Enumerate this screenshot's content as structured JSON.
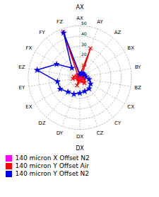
{
  "chart_data": {
    "type": "radar",
    "categories": [
      "AX",
      "AY",
      "AZ",
      "BX",
      "BY",
      "BZ",
      "CX",
      "CY",
      "CZ",
      "DX",
      "DY",
      "DZ",
      "EX",
      "EY",
      "EZ",
      "FX",
      "FY",
      "FZ"
    ],
    "series": [
      {
        "name": "140 micron X Offset N2",
        "color": "#ff00ff",
        "marker": "star",
        "values": [
          1,
          1,
          1,
          1,
          1,
          1,
          1,
          1,
          1,
          1,
          1,
          1,
          1,
          1,
          1,
          1,
          1,
          1
        ]
      },
      {
        "name": "140 micron Y Offset Air",
        "color": "#ff0000",
        "marker": "x",
        "values": [
          2,
          30,
          3,
          2,
          3,
          4,
          5,
          7,
          4,
          3,
          8,
          2,
          2,
          7,
          6,
          3,
          3,
          47
        ]
      },
      {
        "name": "140 micron Y Offset N2",
        "color": "#0000ff",
        "marker": "star",
        "values": [
          3,
          5,
          5,
          5,
          6,
          9,
          12,
          14,
          14,
          15,
          17,
          18,
          22,
          22,
          42,
          26,
          12,
          46
        ]
      }
    ],
    "ylim": [
      0,
      50
    ],
    "yticks": [
      10,
      20,
      30,
      40,
      50
    ],
    "annotations": [
      "AX",
      "DX"
    ],
    "grid": true,
    "legend": "bottom"
  }
}
